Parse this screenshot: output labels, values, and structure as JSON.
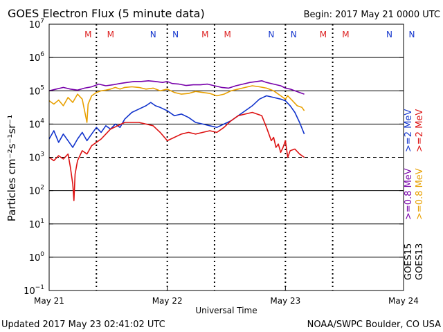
{
  "title": "GOES Electron Flux (5 minute data)",
  "begin_label": "Begin: 2017 May 21 0000 UTC",
  "updated_label": "Updated 2017 May 23 02:41:02 UTC",
  "credit_label": "NOAA/SWPC Boulder, CO USA",
  "colors": {
    "background": "#ffffff",
    "axis": "#000000",
    "midnight_marker": "#000000",
    "M": "#dd2222",
    "N": "#1133cc"
  },
  "chart_data": {
    "type": "line",
    "title": "GOES Electron Flux (5 minute data)",
    "xlabel": "Universal Time",
    "ylabel": "Particles cm⁻²s⁻¹sr⁻¹",
    "x_unit": "days from 2017 May 21 0000 UTC",
    "xlim": [
      0,
      3
    ],
    "x_ticks": [
      {
        "x": 0,
        "label": "May 21"
      },
      {
        "x": 1,
        "label": "May 22"
      },
      {
        "x": 2,
        "label": "May 23"
      },
      {
        "x": 3,
        "label": "May 24"
      }
    ],
    "y_scale": "log",
    "ylim_exponent": [
      -1,
      7
    ],
    "y_tick_exponents": [
      7,
      6,
      5,
      4,
      3,
      2,
      1,
      0,
      -1
    ],
    "threshold_exponent": 3,
    "grid": true,
    "day_markers": [
      0.4,
      1.0,
      1.4,
      2.0,
      2.4
    ],
    "top_markers": [
      {
        "x": 0.33,
        "letter": "M"
      },
      {
        "x": 0.52,
        "letter": "M"
      },
      {
        "x": 0.88,
        "letter": "N"
      },
      {
        "x": 1.07,
        "letter": "N"
      },
      {
        "x": 1.32,
        "letter": "M"
      },
      {
        "x": 1.51,
        "letter": "M"
      },
      {
        "x": 1.88,
        "letter": "N"
      },
      {
        "x": 2.07,
        "letter": "N"
      },
      {
        "x": 2.32,
        "letter": "M"
      },
      {
        "x": 2.51,
        "letter": "M"
      },
      {
        "x": 2.88,
        "letter": "N"
      },
      {
        "x": 3.07,
        "letter": "N"
      }
    ],
    "legend": {
      "placement": "right",
      "groups": [
        {
          "satellite": "GOES13",
          "entries": [
            {
              "label": ">=0.8 MeV",
              "color": "#e8a000"
            },
            {
              "label": ">=2 MeV",
              "color": "#dd1111"
            }
          ]
        },
        {
          "satellite": "GOES15",
          "entries": [
            {
              "label": ">=0.8 MeV",
              "color": "#7700aa"
            },
            {
              "label": ">=2 MeV",
              "color": "#1133cc"
            }
          ]
        }
      ]
    },
    "series": [
      {
        "color": "#7700aa",
        "points": [
          [
            0,
            5.0
          ],
          [
            0.06,
            5.05
          ],
          [
            0.12,
            5.1
          ],
          [
            0.18,
            5.05
          ],
          [
            0.24,
            5.02
          ],
          [
            0.3,
            5.08
          ],
          [
            0.36,
            5.12
          ],
          [
            0.42,
            5.2
          ],
          [
            0.48,
            5.15
          ],
          [
            0.54,
            5.18
          ],
          [
            0.6,
            5.22
          ],
          [
            0.66,
            5.25
          ],
          [
            0.72,
            5.28
          ],
          [
            0.78,
            5.28
          ],
          [
            0.84,
            5.3
          ],
          [
            0.9,
            5.28
          ],
          [
            0.96,
            5.25
          ],
          [
            1.0,
            5.28
          ],
          [
            1.04,
            5.22
          ],
          [
            1.1,
            5.2
          ],
          [
            1.16,
            5.16
          ],
          [
            1.22,
            5.18
          ],
          [
            1.28,
            5.18
          ],
          [
            1.34,
            5.2
          ],
          [
            1.4,
            5.15
          ],
          [
            1.46,
            5.1
          ],
          [
            1.52,
            5.08
          ],
          [
            1.58,
            5.15
          ],
          [
            1.64,
            5.2
          ],
          [
            1.7,
            5.25
          ],
          [
            1.76,
            5.28
          ],
          [
            1.8,
            5.3
          ],
          [
            1.84,
            5.25
          ],
          [
            1.9,
            5.2
          ],
          [
            1.96,
            5.15
          ],
          [
            2.0,
            5.08
          ],
          [
            2.04,
            5.05
          ],
          [
            2.08,
            5.0
          ],
          [
            2.12,
            4.95
          ],
          [
            2.16,
            4.9
          ]
        ]
      },
      {
        "color": "#e8a000",
        "points": [
          [
            0,
            4.7
          ],
          [
            0.04,
            4.6
          ],
          [
            0.08,
            4.72
          ],
          [
            0.12,
            4.55
          ],
          [
            0.16,
            4.8
          ],
          [
            0.2,
            4.65
          ],
          [
            0.24,
            4.9
          ],
          [
            0.28,
            4.75
          ],
          [
            0.32,
            4.05
          ],
          [
            0.33,
            4.6
          ],
          [
            0.36,
            4.85
          ],
          [
            0.4,
            4.95
          ],
          [
            0.44,
            5.0
          ],
          [
            0.48,
            5.02
          ],
          [
            0.52,
            5.05
          ],
          [
            0.56,
            5.1
          ],
          [
            0.6,
            5.05
          ],
          [
            0.64,
            5.1
          ],
          [
            0.7,
            5.12
          ],
          [
            0.76,
            5.1
          ],
          [
            0.82,
            5.05
          ],
          [
            0.88,
            5.08
          ],
          [
            0.94,
            5.0
          ],
          [
            1.0,
            5.05
          ],
          [
            1.06,
            4.95
          ],
          [
            1.12,
            4.9
          ],
          [
            1.18,
            4.92
          ],
          [
            1.24,
            4.98
          ],
          [
            1.3,
            4.95
          ],
          [
            1.36,
            4.92
          ],
          [
            1.42,
            4.85
          ],
          [
            1.48,
            4.9
          ],
          [
            1.54,
            5.0
          ],
          [
            1.6,
            5.05
          ],
          [
            1.66,
            5.1
          ],
          [
            1.72,
            5.15
          ],
          [
            1.78,
            5.12
          ],
          [
            1.84,
            5.08
          ],
          [
            1.9,
            5.0
          ],
          [
            1.96,
            4.85
          ],
          [
            2.0,
            4.75
          ],
          [
            2.02,
            4.85
          ],
          [
            2.06,
            4.7
          ],
          [
            2.1,
            4.55
          ],
          [
            2.14,
            4.5
          ],
          [
            2.16,
            4.4
          ]
        ]
      },
      {
        "color": "#1133cc",
        "points": [
          [
            0,
            3.55
          ],
          [
            0.04,
            3.8
          ],
          [
            0.08,
            3.45
          ],
          [
            0.12,
            3.7
          ],
          [
            0.16,
            3.5
          ],
          [
            0.2,
            3.3
          ],
          [
            0.24,
            3.55
          ],
          [
            0.28,
            3.75
          ],
          [
            0.32,
            3.5
          ],
          [
            0.36,
            3.7
          ],
          [
            0.4,
            3.9
          ],
          [
            0.44,
            3.75
          ],
          [
            0.48,
            3.95
          ],
          [
            0.52,
            3.85
          ],
          [
            0.56,
            4.0
          ],
          [
            0.6,
            3.9
          ],
          [
            0.64,
            4.15
          ],
          [
            0.7,
            4.35
          ],
          [
            0.76,
            4.45
          ],
          [
            0.82,
            4.55
          ],
          [
            0.86,
            4.65
          ],
          [
            0.9,
            4.55
          ],
          [
            0.94,
            4.5
          ],
          [
            1.0,
            4.4
          ],
          [
            1.06,
            4.25
          ],
          [
            1.12,
            4.3
          ],
          [
            1.18,
            4.2
          ],
          [
            1.24,
            4.05
          ],
          [
            1.3,
            4.0
          ],
          [
            1.36,
            3.95
          ],
          [
            1.42,
            3.9
          ],
          [
            1.48,
            4.0
          ],
          [
            1.54,
            4.1
          ],
          [
            1.6,
            4.25
          ],
          [
            1.66,
            4.4
          ],
          [
            1.72,
            4.55
          ],
          [
            1.78,
            4.75
          ],
          [
            1.84,
            4.85
          ],
          [
            1.9,
            4.8
          ],
          [
            1.96,
            4.75
          ],
          [
            2.0,
            4.7
          ],
          [
            2.04,
            4.55
          ],
          [
            2.08,
            4.35
          ],
          [
            2.12,
            4.05
          ],
          [
            2.16,
            3.7
          ]
        ]
      },
      {
        "color": "#dd1111",
        "points": [
          [
            0,
            3.0
          ],
          [
            0.04,
            2.9
          ],
          [
            0.08,
            3.05
          ],
          [
            0.12,
            2.95
          ],
          [
            0.16,
            3.1
          ],
          [
            0.18,
            2.7
          ],
          [
            0.2,
            2.2
          ],
          [
            0.21,
            1.7
          ],
          [
            0.22,
            2.5
          ],
          [
            0.24,
            2.9
          ],
          [
            0.28,
            3.2
          ],
          [
            0.32,
            3.1
          ],
          [
            0.36,
            3.35
          ],
          [
            0.4,
            3.45
          ],
          [
            0.44,
            3.55
          ],
          [
            0.48,
            3.7
          ],
          [
            0.52,
            3.85
          ],
          [
            0.58,
            3.95
          ],
          [
            0.64,
            4.05
          ],
          [
            0.7,
            4.05
          ],
          [
            0.76,
            4.05
          ],
          [
            0.82,
            4.0
          ],
          [
            0.88,
            3.95
          ],
          [
            0.94,
            3.75
          ],
          [
            1.0,
            3.5
          ],
          [
            1.06,
            3.6
          ],
          [
            1.12,
            3.7
          ],
          [
            1.18,
            3.75
          ],
          [
            1.24,
            3.7
          ],
          [
            1.3,
            3.75
          ],
          [
            1.36,
            3.8
          ],
          [
            1.42,
            3.75
          ],
          [
            1.48,
            3.9
          ],
          [
            1.54,
            4.1
          ],
          [
            1.6,
            4.25
          ],
          [
            1.66,
            4.3
          ],
          [
            1.72,
            4.35
          ],
          [
            1.76,
            4.3
          ],
          [
            1.8,
            4.25
          ],
          [
            1.84,
            3.9
          ],
          [
            1.88,
            3.5
          ],
          [
            1.9,
            3.6
          ],
          [
            1.92,
            3.3
          ],
          [
            1.94,
            3.4
          ],
          [
            1.96,
            3.15
          ],
          [
            1.98,
            3.3
          ],
          [
            2.0,
            3.5
          ],
          [
            2.02,
            3.0
          ],
          [
            2.04,
            3.2
          ],
          [
            2.08,
            3.25
          ],
          [
            2.12,
            3.1
          ],
          [
            2.16,
            3.0
          ]
        ]
      }
    ]
  }
}
